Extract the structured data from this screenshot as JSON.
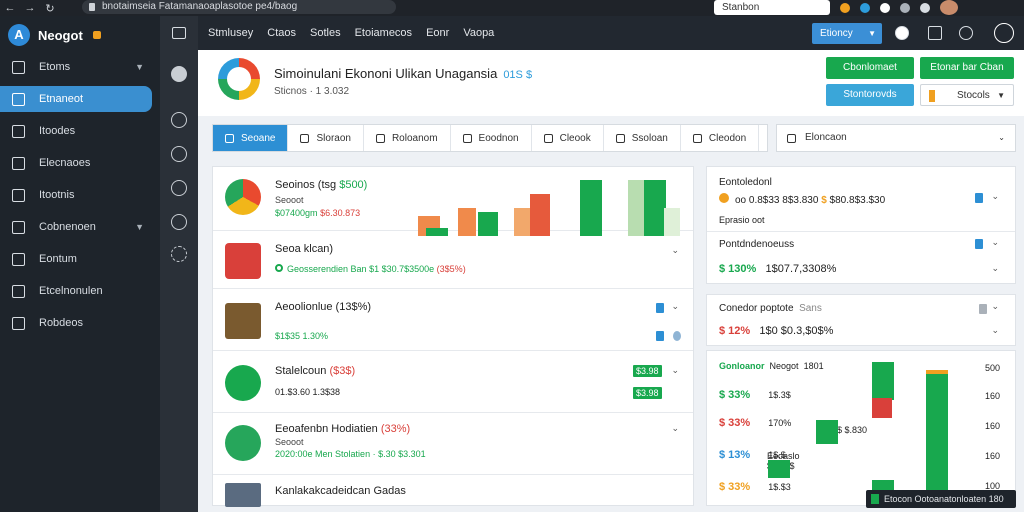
{
  "browser": {
    "url": "bnotaimseia Fatamanaoaplasotoe pe4/baog",
    "search": "Stanbon"
  },
  "sidebar": {
    "brand": "Neogot",
    "items": [
      {
        "label": "Etoms",
        "icon": "square-icon",
        "active": false,
        "chevron": true
      },
      {
        "label": "Etnaneot",
        "icon": "building-icon",
        "active": true,
        "chevron": false
      },
      {
        "label": "Itoodes",
        "icon": "clipboard-icon",
        "active": false,
        "chevron": false
      },
      {
        "label": "Elecnaoes",
        "icon": "play-icon",
        "active": false,
        "chevron": false
      },
      {
        "label": "Itootnis",
        "icon": "settings-icon",
        "active": false,
        "chevron": false
      },
      {
        "label": "Cobnenoen",
        "icon": "users-icon",
        "active": false,
        "chevron": true
      },
      {
        "label": "Eontum",
        "icon": "grid-icon",
        "active": false,
        "chevron": false
      },
      {
        "label": "Etcelnonulen",
        "icon": "device-icon",
        "active": false,
        "chevron": false
      },
      {
        "label": "Robdeos",
        "icon": "flag-icon",
        "active": false,
        "chevron": false
      }
    ]
  },
  "topnav": {
    "links": [
      "Stmlusey",
      "Ctaos",
      "Sotles",
      "Etoiamecos",
      "Eonr",
      "Vaopa"
    ],
    "dropdown": "Etioncy"
  },
  "header": {
    "title": "Simoinulani Ekononi Ulikan Unagansia",
    "accent": "01S $",
    "subtitle": "Sticnos · 1 3.032",
    "btn1": "Cbonlomaet",
    "btn2": "Etonar bar Cban",
    "btn3": "Stontorovds",
    "select": "Stocols"
  },
  "tabs": [
    "Seoane",
    "Sloraon",
    "Roloanom",
    "Eoodnon",
    "Cleook",
    "Ssoloan",
    "Cleodon"
  ],
  "tabs_right": "Eloncaon",
  "list": [
    {
      "title": "Seoinos (tsg ",
      "title_hl": "$500)",
      "sub": "Seooot",
      "val_g": "$07400gm",
      "val_r": "$6.30.873"
    },
    {
      "title": "Seoa klcan)",
      "sub": "",
      "val": "Geosserendien Ban",
      "val_g2": "$1 $30.7$3500e",
      "val_r2": "(3$5%)"
    },
    {
      "title": "Aeoolionlue (13$%)",
      "sub": "",
      "val_g": "$1$35 1.30%",
      "val_r": ""
    },
    {
      "title": "Stalelcoun ",
      "title_hl": "($3$)",
      "sub": "",
      "val": "01.$3.60 1.3$38",
      "chip": "$3.98"
    },
    {
      "title": "Eeoafenbn Hodiatien ",
      "title_hl": "(33%)",
      "sub": "Seooot",
      "val_g": "2020:00e Men Stolatien · $.30 $3.301",
      "val_r": ""
    },
    {
      "title": "Kanlakakcadeidcan Gadas",
      "sub": "",
      "val": ""
    }
  ],
  "right_panel_1": {
    "title": "Eontoledonl",
    "line1": "oo 0.8$33 8$3.830",
    "line1b": "$80.8$3.$30",
    "line2": "Eprasio oot",
    "title2": "Pontdndenoeuss",
    "line3_g": "$ 130%",
    "line3": "1$07.7,3308%"
  },
  "right_panel_2": {
    "title": "Conedor poptote",
    "title_b": "Sans",
    "line1_r": "$ 12%",
    "line1": "1$0 $0.3,$0$%"
  },
  "right_panel_3": {
    "title": "Gonloanor",
    "title_b": "Neogot",
    "title_c": "1801",
    "rows": [
      {
        "pct": "$ 33%",
        "color": "g",
        "val": "1$.3$"
      },
      {
        "pct": "$ 33%",
        "color": "r",
        "val": "170%"
      },
      {
        "pct": "$ 13%",
        "color": "b",
        "val": "1$.$"
      },
      {
        "pct": "$ 33%",
        "color": "y",
        "val": "1$.$3"
      }
    ],
    "extra": [
      "$.30 $ $.830",
      "Eeoaslo",
      "$3.$3$"
    ],
    "axis": [
      "500",
      "160",
      "160",
      "160",
      "100"
    ]
  },
  "toast": "Etocon Ootoanatonloaten 180",
  "colors": {
    "green": "#18a84e",
    "blue": "#2d8fd4",
    "red": "#d9403a",
    "orange": "#f0a020",
    "sidebar": "#1e242b"
  },
  "mini_chart": {
    "bars": [
      {
        "h": 20,
        "c": "#f08a4b"
      },
      {
        "h": 8,
        "c": "#18a84e"
      },
      {
        "h": 28,
        "c": "#f08a4b"
      },
      {
        "h": 24,
        "c": "#18a84e"
      },
      {
        "h": 28,
        "c": "#f2a86b"
      },
      {
        "h": 42,
        "c": "#e65a3c"
      },
      {
        "h": 56,
        "c": "#18a84e"
      },
      {
        "h": 56,
        "c": "#b8ddb0"
      },
      {
        "h": 56,
        "c": "#18a84e"
      },
      {
        "h": 28,
        "c": "#dff0d8"
      }
    ]
  },
  "big_chart": {
    "bars": [
      {
        "h": 24,
        "c": "#18a84e"
      },
      {
        "h": 18,
        "c": "#18a84e"
      },
      {
        "h": 38,
        "c": "#18a84e"
      },
      {
        "h": 28,
        "c": "#18a84e"
      },
      {
        "h": 128,
        "c": "#18a84e"
      }
    ]
  }
}
